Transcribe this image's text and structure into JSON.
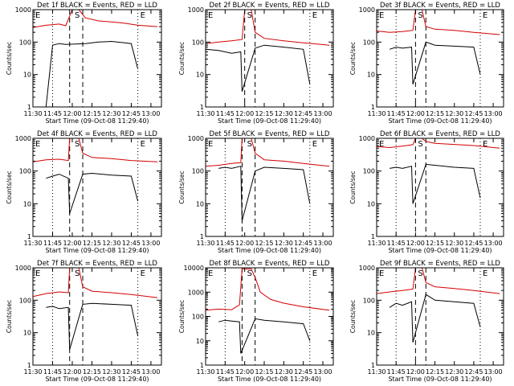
{
  "figure": {
    "background": "#ffffff",
    "axis_color": "#000000"
  },
  "chart_data": [
    {
      "type": "line",
      "title": "Det 1f BLACK = Events, RED = LLD",
      "xlabel": "Start Time (09-Oct-08 11:29:40)",
      "ylabel": "Counts/sec",
      "x_ticks": [
        "11:30",
        "11:45",
        "12:00",
        "12:15",
        "12:30",
        "12:45",
        "13:00"
      ],
      "y_ticks": [
        "1",
        "10",
        "100",
        "1000"
      ],
      "y_scale": "log",
      "ylim": [
        1,
        1000
      ],
      "markers": [
        {
          "label": "E",
          "time": "11:30"
        },
        {
          "label": "S",
          "time": "12:00"
        },
        {
          "label": "E",
          "time": "12:50"
        }
      ],
      "dotted_lines": [
        "11:45",
        "12:50"
      ],
      "dashed_lines": [
        "11:58",
        "12:08"
      ],
      "series": [
        {
          "color": "#d40000",
          "x": [
            "11:30",
            "11:40",
            "11:50",
            "11:55",
            "12:00",
            "12:05",
            "12:10",
            "12:20",
            "12:30",
            "12:40",
            "12:50",
            "13:05"
          ],
          "values": [
            280,
            330,
            360,
            320,
            1000,
            1000,
            560,
            450,
            420,
            380,
            330,
            300
          ]
        },
        {
          "color": "#000000",
          "x": [
            "11:40",
            "11:45",
            "11:50",
            "11:55",
            "12:10",
            "12:20",
            "12:30",
            "12:40",
            "12:45",
            "12:50"
          ],
          "values": [
            1,
            80,
            90,
            85,
            90,
            100,
            105,
            95,
            90,
            15
          ]
        }
      ]
    },
    {
      "type": "line",
      "title": "Det 2f BLACK = Events, RED = LLD",
      "xlabel": "Start Time (09-Oct-08 11:29:40)",
      "ylabel": "Counts/sec",
      "x_ticks": [
        "11:30",
        "11:45",
        "12:00",
        "12:15",
        "12:30",
        "12:45",
        "13:00"
      ],
      "y_ticks": [
        "1",
        "10",
        "100",
        "1000"
      ],
      "y_scale": "log",
      "ylim": [
        1,
        1000
      ],
      "markers": [
        {
          "label": "E",
          "time": "11:30"
        },
        {
          "label": "S",
          "time": "12:00"
        },
        {
          "label": "E",
          "time": "12:50"
        }
      ],
      "dotted_lines": [
        "11:30",
        "12:50"
      ],
      "dashed_lines": [
        "12:00",
        "12:08"
      ],
      "series": [
        {
          "color": "#d40000",
          "x": [
            "11:30",
            "11:40",
            "11:50",
            "11:58",
            "12:00",
            "12:05",
            "12:08",
            "12:15",
            "12:30",
            "12:45",
            "13:05"
          ],
          "values": [
            90,
            100,
            110,
            120,
            1000,
            1000,
            200,
            130,
            110,
            95,
            80
          ]
        },
        {
          "color": "#000000",
          "x": [
            "11:30",
            "11:40",
            "11:50",
            "11:57",
            "11:58",
            "12:08",
            "12:15",
            "12:30",
            "12:45",
            "12:50"
          ],
          "values": [
            60,
            55,
            45,
            50,
            3,
            65,
            80,
            70,
            60,
            5
          ]
        }
      ]
    },
    {
      "type": "line",
      "title": "Det 3f BLACK = Events, RED = LLD",
      "xlabel": "Start Time (09-Oct-08 11:29:40)",
      "ylabel": "Counts/sec",
      "x_ticks": [
        "11:30",
        "11:45",
        "12:00",
        "12:15",
        "12:30",
        "12:45",
        "13:00"
      ],
      "y_ticks": [
        "1",
        "10",
        "100",
        "1000"
      ],
      "y_scale": "log",
      "ylim": [
        1,
        1000
      ],
      "markers": [
        {
          "label": "E",
          "time": "11:30"
        },
        {
          "label": "S",
          "time": "12:00"
        },
        {
          "label": "E",
          "time": "12:50"
        }
      ],
      "dotted_lines": [
        "11:45",
        "12:50"
      ],
      "dashed_lines": [
        "12:00",
        "12:08"
      ],
      "series": [
        {
          "color": "#d40000",
          "x": [
            "11:30",
            "11:40",
            "11:50",
            "11:58",
            "12:00",
            "12:05",
            "12:08",
            "12:15",
            "12:30",
            "12:45",
            "13:05"
          ],
          "values": [
            220,
            200,
            210,
            230,
            1000,
            1000,
            300,
            250,
            230,
            200,
            170
          ]
        },
        {
          "color": "#000000",
          "x": [
            "11:40",
            "11:45",
            "11:50",
            "11:57",
            "11:58",
            "12:08",
            "12:15",
            "12:30",
            "12:45",
            "12:50"
          ],
          "values": [
            60,
            70,
            65,
            70,
            5,
            100,
            80,
            75,
            70,
            10
          ]
        }
      ]
    },
    {
      "type": "line",
      "title": "Det 4f BLACK = Events, RED = LLD",
      "xlabel": "Start Time (09-Oct-08 11:29:40)",
      "ylabel": "Counts/sec",
      "x_ticks": [
        "11:30",
        "11:45",
        "12:00",
        "12:15",
        "12:30",
        "12:45",
        "13:00"
      ],
      "y_ticks": [
        "1",
        "10",
        "100",
        "1000"
      ],
      "y_scale": "log",
      "ylim": [
        1,
        1000
      ],
      "markers": [
        {
          "label": "E",
          "time": "11:30"
        },
        {
          "label": "S",
          "time": "12:00"
        },
        {
          "label": "E",
          "time": "12:50"
        }
      ],
      "dotted_lines": [
        "11:45",
        "12:50"
      ],
      "dashed_lines": [
        "11:58",
        "12:08"
      ],
      "series": [
        {
          "color": "#d40000",
          "x": [
            "11:30",
            "11:40",
            "11:50",
            "11:57",
            "11:58",
            "12:05",
            "12:08",
            "12:15",
            "12:30",
            "12:45",
            "13:05"
          ],
          "values": [
            190,
            220,
            230,
            210,
            1000,
            1000,
            350,
            260,
            240,
            210,
            190
          ]
        },
        {
          "color": "#000000",
          "x": [
            "11:40",
            "11:45",
            "11:50",
            "11:57",
            "11:58",
            "12:08",
            "12:15",
            "12:30",
            "12:45",
            "12:50"
          ],
          "values": [
            60,
            70,
            80,
            60,
            5,
            80,
            85,
            75,
            70,
            12
          ]
        }
      ]
    },
    {
      "type": "line",
      "title": "Det 5f BLACK = Events, RED = LLD",
      "xlabel": "Start Time (09-Oct-08 11:29:40)",
      "ylabel": "Counts/sec",
      "x_ticks": [
        "11:30",
        "11:45",
        "12:00",
        "12:15",
        "12:30",
        "12:45",
        "13:00"
      ],
      "y_ticks": [
        "1",
        "10",
        "100",
        "1000"
      ],
      "y_scale": "log",
      "ylim": [
        1,
        1000
      ],
      "markers": [
        {
          "label": "E",
          "time": "11:30"
        },
        {
          "label": "S",
          "time": "12:00"
        },
        {
          "label": "E",
          "time": "12:50"
        }
      ],
      "dotted_lines": [
        "11:45",
        "12:50"
      ],
      "dashed_lines": [
        "11:58",
        "12:08"
      ],
      "series": [
        {
          "color": "#d40000",
          "x": [
            "11:30",
            "11:40",
            "11:50",
            "11:57",
            "11:58",
            "12:05",
            "12:08",
            "12:15",
            "12:30",
            "12:45",
            "13:05"
          ],
          "values": [
            140,
            150,
            170,
            180,
            1000,
            1000,
            350,
            220,
            200,
            170,
            140
          ]
        },
        {
          "color": "#000000",
          "x": [
            "11:40",
            "11:45",
            "11:50",
            "11:57",
            "11:58",
            "12:08",
            "12:15",
            "12:30",
            "12:45",
            "12:50"
          ],
          "values": [
            120,
            130,
            120,
            140,
            3,
            100,
            130,
            120,
            110,
            10
          ]
        }
      ]
    },
    {
      "type": "line",
      "title": "Det 6f BLACK = Events, RED = LLD",
      "xlabel": "Start Time (09-Oct-08 11:29:40)",
      "ylabel": "Counts/sec",
      "x_ticks": [
        "11:30",
        "11:45",
        "12:00",
        "12:15",
        "12:30",
        "12:45",
        "13:00"
      ],
      "y_ticks": [
        "1",
        "10",
        "100",
        "1000"
      ],
      "y_scale": "log",
      "ylim": [
        1,
        1000
      ],
      "markers": [
        {
          "label": "E",
          "time": "11:30"
        },
        {
          "label": "S",
          "time": "12:00"
        },
        {
          "label": "E",
          "time": "12:50"
        }
      ],
      "dotted_lines": [
        "11:45",
        "12:50"
      ],
      "dashed_lines": [
        "12:00",
        "12:08"
      ],
      "series": [
        {
          "color": "#d40000",
          "x": [
            "11:30",
            "11:40",
            "11:50",
            "11:58",
            "12:00",
            "12:05",
            "12:08",
            "12:15",
            "12:30",
            "12:45",
            "13:05"
          ],
          "values": [
            560,
            520,
            580,
            640,
            1000,
            1000,
            800,
            700,
            650,
            600,
            500
          ]
        },
        {
          "color": "#000000",
          "x": [
            "11:40",
            "11:45",
            "11:50",
            "11:57",
            "11:58",
            "12:08",
            "12:15",
            "12:30",
            "12:45",
            "12:50"
          ],
          "values": [
            120,
            130,
            120,
            140,
            10,
            160,
            150,
            130,
            120,
            15
          ]
        }
      ]
    },
    {
      "type": "line",
      "title": "Det 7f BLACK = Events, RED = LLD",
      "xlabel": "Start Time (09-Oct-08 11:29:40)",
      "ylabel": "Counts/sec",
      "x_ticks": [
        "11:30",
        "11:45",
        "12:00",
        "12:15",
        "12:30",
        "12:45",
        "13:00"
      ],
      "y_ticks": [
        "1",
        "10",
        "100",
        "1000"
      ],
      "y_scale": "log",
      "ylim": [
        1,
        1000
      ],
      "markers": [
        {
          "label": "E",
          "time": "11:30"
        },
        {
          "label": "S",
          "time": "12:00"
        },
        {
          "label": "E",
          "time": "12:50"
        }
      ],
      "dotted_lines": [
        "11:45",
        "12:50"
      ],
      "dashed_lines": [
        "11:58",
        "12:08"
      ],
      "series": [
        {
          "color": "#d40000",
          "x": [
            "11:30",
            "11:40",
            "11:50",
            "11:57",
            "11:58",
            "12:05",
            "12:08",
            "12:15",
            "12:30",
            "12:45",
            "13:05"
          ],
          "values": [
            130,
            160,
            180,
            170,
            1000,
            1000,
            260,
            190,
            170,
            150,
            120
          ]
        },
        {
          "color": "#000000",
          "x": [
            "11:40",
            "11:45",
            "11:50",
            "11:57",
            "11:58",
            "12:08",
            "12:15",
            "12:30",
            "12:45",
            "12:50"
          ],
          "values": [
            60,
            65,
            55,
            60,
            3,
            75,
            80,
            75,
            70,
            8
          ]
        }
      ]
    },
    {
      "type": "line",
      "title": "Det 8f BLACK = Events, RED = LLD",
      "xlabel": "Start Time (09-Oct-08 11:29:40)",
      "ylabel": "Counts/sec",
      "x_ticks": [
        "11:30",
        "11:45",
        "12:00",
        "12:15",
        "12:30",
        "12:45",
        "13:00"
      ],
      "y_ticks": [
        "1",
        "10",
        "100",
        "1000",
        "10000"
      ],
      "y_scale": "log",
      "ylim": [
        1,
        10000
      ],
      "markers": [
        {
          "label": "E",
          "time": "11:30"
        },
        {
          "label": "S",
          "time": "12:00"
        },
        {
          "label": "E",
          "time": "12:50"
        }
      ],
      "dotted_lines": [
        "11:45",
        "12:50"
      ],
      "dashed_lines": [
        "11:58",
        "12:08"
      ],
      "series": [
        {
          "color": "#d40000",
          "x": [
            "11:30",
            "11:40",
            "11:50",
            "11:56",
            "11:58",
            "12:05",
            "12:08",
            "12:12",
            "12:20",
            "12:30",
            "12:45",
            "13:05"
          ],
          "values": [
            180,
            200,
            190,
            300,
            9000,
            9000,
            4000,
            1000,
            500,
            350,
            250,
            180
          ]
        },
        {
          "color": "#000000",
          "x": [
            "11:40",
            "11:45",
            "11:50",
            "11:56",
            "11:57",
            "12:08",
            "12:15",
            "12:30",
            "12:45",
            "12:50"
          ],
          "values": [
            60,
            70,
            65,
            60,
            3,
            80,
            70,
            60,
            50,
            10
          ]
        }
      ]
    },
    {
      "type": "line",
      "title": "Det 9f BLACK = Events, RED = LLD",
      "xlabel": "Start Time (09-Oct-08 11:29:40)",
      "ylabel": "Counts/sec",
      "x_ticks": [
        "11:30",
        "11:45",
        "12:00",
        "12:15",
        "12:30",
        "12:45",
        "13:00"
      ],
      "y_ticks": [
        "1",
        "10",
        "100",
        "1000"
      ],
      "y_scale": "log",
      "ylim": [
        1,
        1000
      ],
      "markers": [
        {
          "label": "E",
          "time": "11:30"
        },
        {
          "label": "S",
          "time": "12:00"
        },
        {
          "label": "E",
          "time": "12:50"
        }
      ],
      "dotted_lines": [
        "11:45",
        "12:50"
      ],
      "dashed_lines": [
        "12:00",
        "12:08"
      ],
      "series": [
        {
          "color": "#d40000",
          "x": [
            "11:30",
            "11:40",
            "11:50",
            "11:58",
            "12:00",
            "12:05",
            "12:08",
            "12:15",
            "12:30",
            "12:45",
            "13:05"
          ],
          "values": [
            160,
            180,
            200,
            220,
            1000,
            1000,
            350,
            260,
            230,
            200,
            160
          ]
        },
        {
          "color": "#000000",
          "x": [
            "11:40",
            "11:45",
            "11:50",
            "11:57",
            "11:58",
            "12:08",
            "12:15",
            "12:30",
            "12:45",
            "12:50"
          ],
          "values": [
            60,
            80,
            70,
            90,
            5,
            150,
            100,
            90,
            80,
            15
          ]
        }
      ]
    }
  ]
}
